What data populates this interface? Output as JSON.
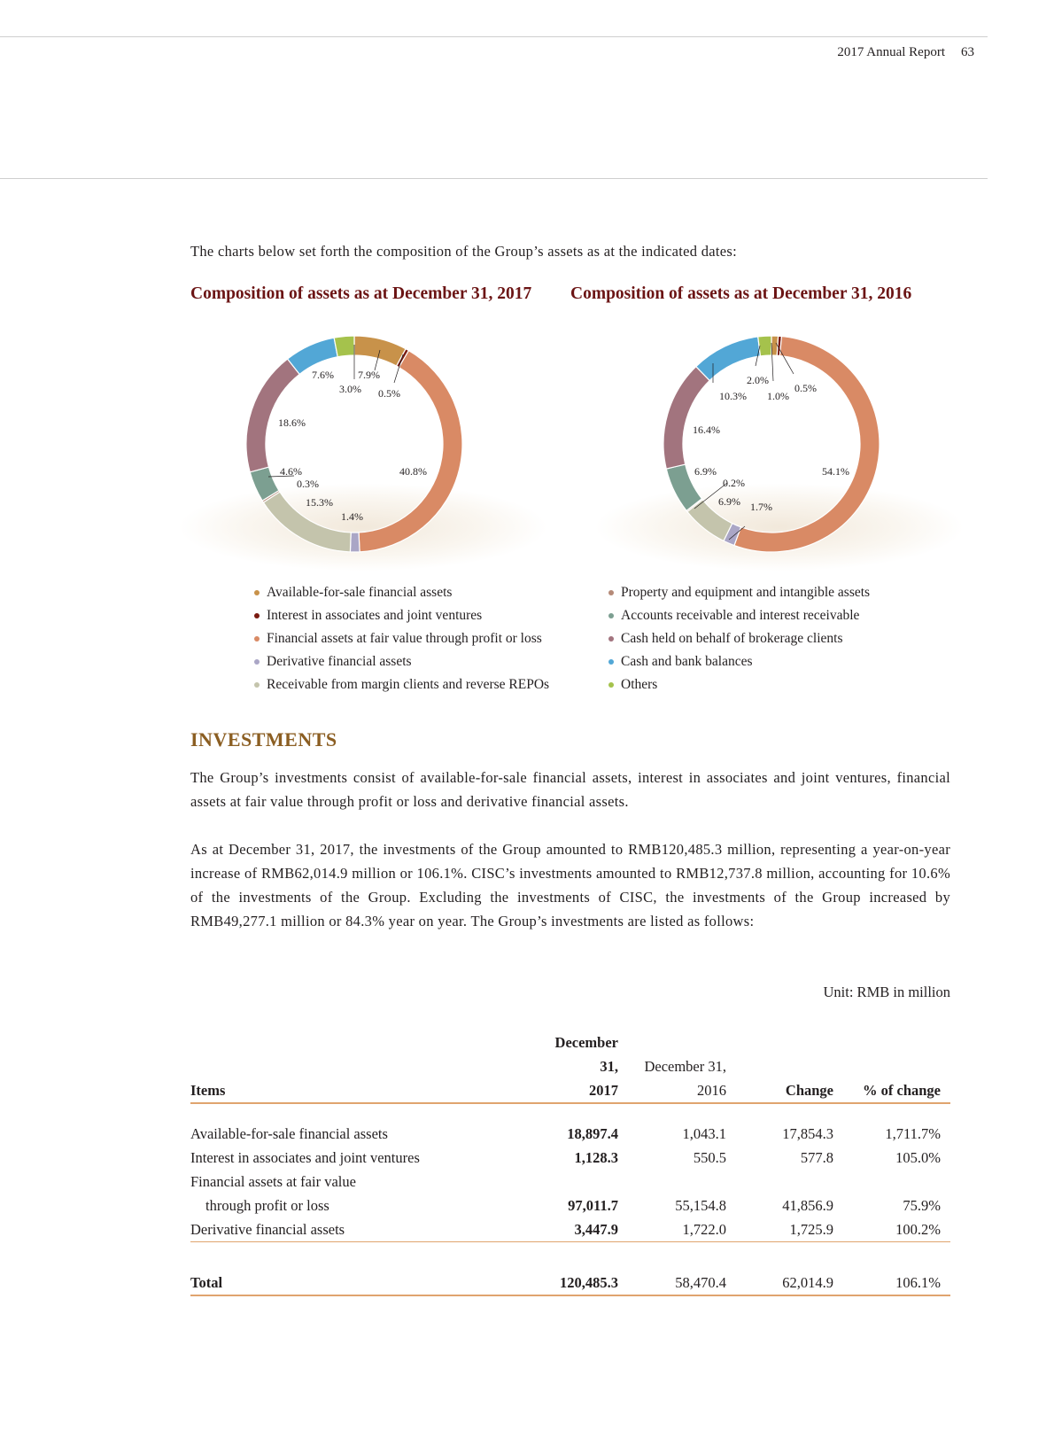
{
  "header": {
    "report_title": "2017 Annual Report",
    "page_number": "63"
  },
  "intro": "The charts below set forth the composition of the Group’s assets as at the indicated dates:",
  "chart_data": [
    {
      "type": "pie",
      "title": "Composition of assets as at December 31, 2017",
      "categories": [
        "Available-for-sale financial assets",
        "Interest in associates and joint ventures",
        "Financial assets at fair value through profit or loss",
        "Derivative financial assets",
        "Receivable from margin clients and reverse REPOs",
        "Property and equipment and intangible assets",
        "Accounts receivable and interest receivable",
        "Cash held on behalf of brokerage clients",
        "Cash and bank balances",
        "Others"
      ],
      "values": [
        7.9,
        0.5,
        40.8,
        1.4,
        15.3,
        0.3,
        4.6,
        18.6,
        7.6,
        3.0
      ],
      "labels": [
        "7.9%",
        "0.5%",
        "40.8%",
        "1.4%",
        "15.3%",
        "0.3%",
        "4.6%",
        "18.6%",
        "7.6%",
        "3.0%"
      ],
      "unit": "%",
      "donut": true
    },
    {
      "type": "pie",
      "title": "Composition of assets as at December 31, 2016",
      "categories": [
        "Available-for-sale financial assets",
        "Interest in associates and joint ventures",
        "Financial assets at fair value through profit or loss",
        "Derivative financial assets",
        "Receivable from margin clients and reverse REPOs",
        "Property and equipment and intangible assets",
        "Accounts receivable and interest receivable",
        "Cash held on behalf of brokerage clients",
        "Cash and bank balances",
        "Others"
      ],
      "values": [
        1.0,
        0.5,
        54.1,
        1.7,
        6.9,
        0.2,
        6.9,
        16.4,
        10.3,
        2.0
      ],
      "labels": [
        "1.0%",
        "0.5%",
        "54.1%",
        "1.7%",
        "6.9%",
        "0.2%",
        "6.9%",
        "16.4%",
        "10.3%",
        "2.0%"
      ],
      "unit": "%",
      "donut": true
    }
  ],
  "colors": [
    "#c8924a",
    "#7a1a10",
    "#d98a65",
    "#aaa6c6",
    "#c4c4ac",
    "#b58a78",
    "#7c9f91",
    "#a2747e",
    "#52a7d6",
    "#a5c24c"
  ],
  "legend": {
    "left": [
      "Available-for-sale financial assets",
      "Interest in associates and joint ventures",
      "Financial assets at fair value through profit or loss",
      "Derivative financial assets",
      "Receivable from margin clients and reverse REPOs"
    ],
    "right": [
      "Property and equipment and intangible assets",
      "Accounts receivable and interest receivable",
      "Cash held on behalf of brokerage clients",
      "Cash and bank balances",
      "Others"
    ]
  },
  "section": {
    "heading": "INVESTMENTS",
    "para1": "The Group’s investments consist of available-for-sale financial assets, interest in associates and joint ventures, financial assets at fair value through profit or loss and derivative financial assets.",
    "para2": "As at December 31, 2017, the investments of the Group amounted to RMB120,485.3 million, representing a year-on-year increase of RMB62,014.9 million or 106.1%. CISC’s investments amounted to RMB12,737.8 million, accounting for 10.6% of the investments of the Group. Excluding the investments of CISC, the investments of the Group increased by RMB49,277.1 million or 84.3% year on year. The Group’s investments are listed as follows:"
  },
  "table": {
    "unit": "Unit: RMB in million",
    "headers": {
      "items": "Items",
      "y2017_line1": "December 31,",
      "y2017_line2": "2017",
      "y2016_line1": "December 31,",
      "y2016_line2": "2016",
      "change": "Change",
      "pct": "% of change"
    },
    "rows": [
      {
        "item": "Available-for-sale financial assets",
        "y2017": "18,897.4",
        "y2016": "1,043.1",
        "change": "17,854.3",
        "pct": "1,711.7%"
      },
      {
        "item": "Interest in associates and joint ventures",
        "y2017": "1,128.3",
        "y2016": "550.5",
        "change": "577.8",
        "pct": "105.0%"
      },
      {
        "item": "Financial assets at fair value",
        "item_line2": "through profit or loss",
        "y2017": "97,011.7",
        "y2016": "55,154.8",
        "change": "41,856.9",
        "pct": "75.9%"
      },
      {
        "item": "Derivative financial assets",
        "y2017": "3,447.9",
        "y2016": "1,722.0",
        "change": "1,725.9",
        "pct": "100.2%"
      }
    ],
    "total": {
      "item": "Total",
      "y2017": "120,485.3",
      "y2016": "58,470.4",
      "change": "62,014.9",
      "pct": "106.1%"
    }
  }
}
